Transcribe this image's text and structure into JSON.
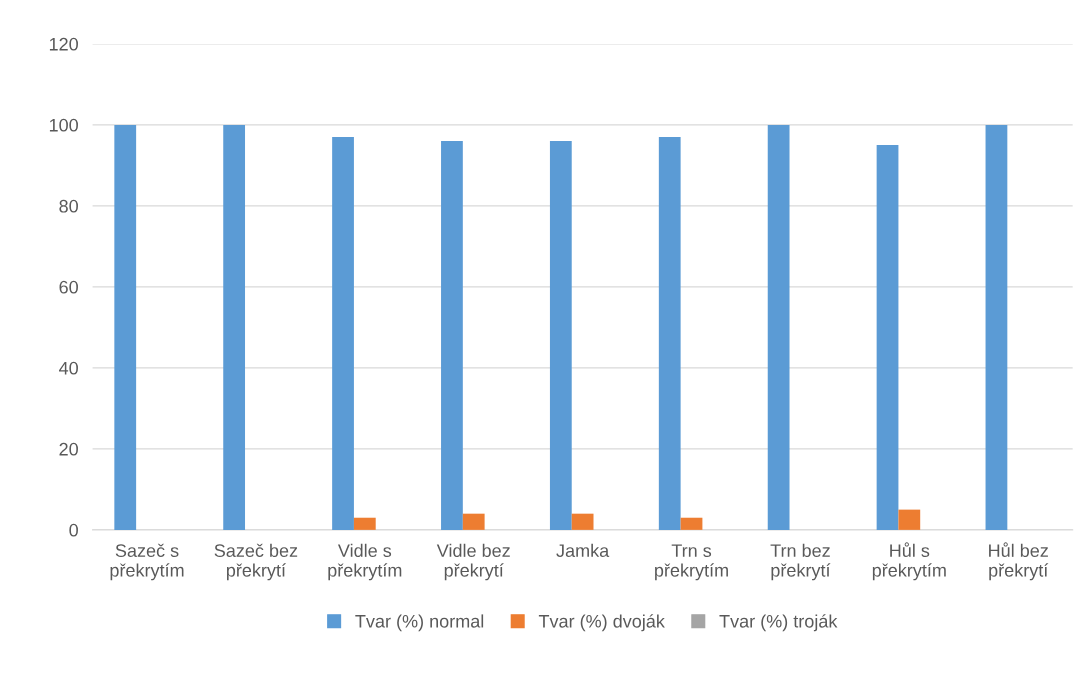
{
  "chart_data": {
    "type": "bar",
    "categories": [
      "Sazeč s\npřekrytím",
      "Sazeč bez\npřekrytí",
      "Vidle s\npřekrytím",
      "Vidle bez\npřekrytí",
      "Jamka",
      "Trn s\npřekrytím",
      "Trn bez\npřekrytí",
      "Hůl s\npřekrytím",
      "Hůl bez\npřekrytí"
    ],
    "series": [
      {
        "name": "Tvar (%) normal",
        "color": "#5b9bd5",
        "values": [
          100,
          100,
          97,
          96,
          96,
          97,
          100,
          95,
          100
        ]
      },
      {
        "name": "Tvar (%) dvoják",
        "color": "#ed7d31",
        "values": [
          0,
          0,
          3,
          4,
          4,
          3,
          0,
          5,
          0
        ]
      },
      {
        "name": "Tvar (%) troják",
        "color": "#a5a5a5",
        "values": [
          0,
          0,
          0,
          0,
          0,
          0,
          0,
          0,
          0
        ]
      }
    ],
    "ylim": [
      0,
      120
    ],
    "yticks": [
      0,
      20,
      40,
      60,
      80,
      100,
      120
    ],
    "grid": "y",
    "legend": "bottom"
  }
}
